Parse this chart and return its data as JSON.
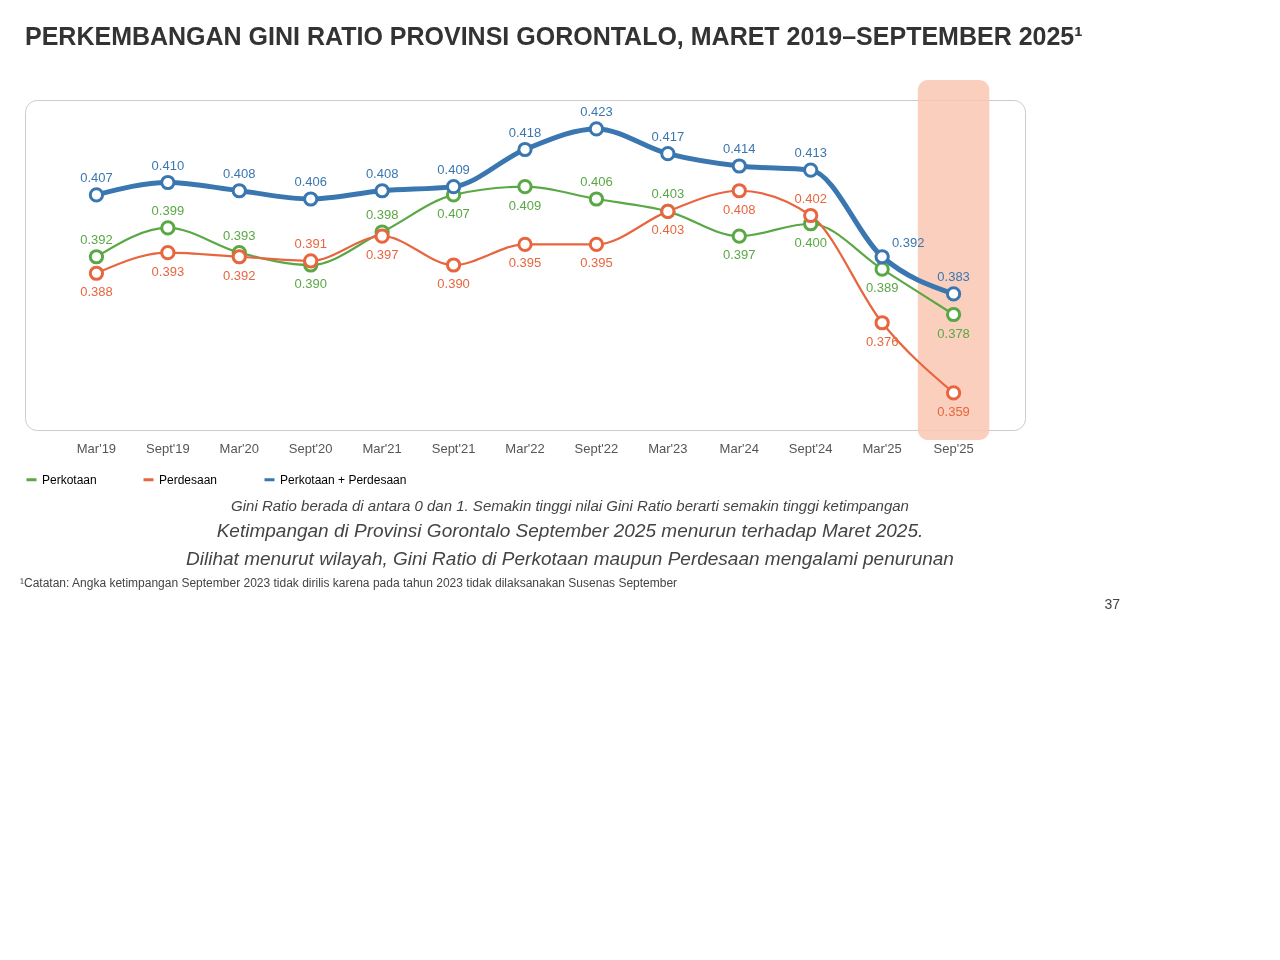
{
  "chart_data": {
    "type": "line",
    "title": "PERKEMBANGAN GINI RATIO PROVINSI GORONTALO, MARET 2019–SEPTEMBER 2025¹",
    "categories": [
      "Mar'19",
      "Sept'19",
      "Mar'20",
      "Sept'20",
      "Mar'21",
      "Sept'21",
      "Mar'22",
      "Sept'22",
      "Mar'23",
      "Mar'24",
      "Sept'24",
      "Mar'25",
      "Sep'25"
    ],
    "series": [
      {
        "name": "Perkotaan",
        "color": "#5aa845",
        "values": [
          0.392,
          0.399,
          0.393,
          0.39,
          0.398,
          0.407,
          0.409,
          0.406,
          0.403,
          0.397,
          0.4,
          0.389,
          0.378
        ],
        "value_labels": [
          "0.392",
          "0.399",
          "0.393",
          "0.390",
          "0.398",
          "0.407",
          "0.409",
          "0.406",
          "0.403",
          "0.397",
          "0.400",
          "0.389",
          "0.378"
        ]
      },
      {
        "name": "Perdesaan",
        "color": "#e8663f",
        "values": [
          0.388,
          0.393,
          0.392,
          0.391,
          0.397,
          0.39,
          0.395,
          0.395,
          0.403,
          0.408,
          0.402,
          0.376,
          0.359
        ],
        "value_labels": [
          "0.388",
          "0.393",
          "0.392",
          "0.391",
          "0.397",
          "0.390",
          "0.395",
          "0.395",
          "0.403",
          "0.408",
          "0.402",
          "0.376",
          "0.359"
        ]
      },
      {
        "name": "Perkotaan + Perdesaan",
        "color": "#3a77b0",
        "values": [
          0.407,
          0.41,
          0.408,
          0.406,
          0.408,
          0.409,
          0.418,
          0.423,
          0.417,
          0.414,
          0.413,
          0.392,
          0.383
        ],
        "value_labels": [
          "0.407",
          "0.410",
          "0.408",
          "0.406",
          "0.408",
          "0.409",
          "0.418",
          "0.423",
          "0.417",
          "0.414",
          "0.413",
          "0.392",
          "0.383"
        ]
      }
    ],
    "bands": [
      {
        "axis": "x",
        "from": "Sep'25",
        "to": "Sep'25",
        "color": "#f9c7b3"
      }
    ],
    "marker": "circle",
    "grid": false,
    "legend": "bottom",
    "annotations": [
      "Gini Ratio berada di antara 0 dan 1. Semakin tinggi nilai Gini Ratio berarti semakin tinggi ketimpangan",
      "Ketimpangan di Provinsi Gorontalo September 2025 menurun terhadap Maret 2025.",
      "Dilihat menurut wilayah, Gini Ratio di Perkotaan maupun Perdesaan mengalami penurunan",
      "¹Catatan: Angka ketimpangan September 2023 tidak dirilis karena pada tahun 2023 tidak dilaksanakan Susenas September",
      "37"
    ]
  }
}
